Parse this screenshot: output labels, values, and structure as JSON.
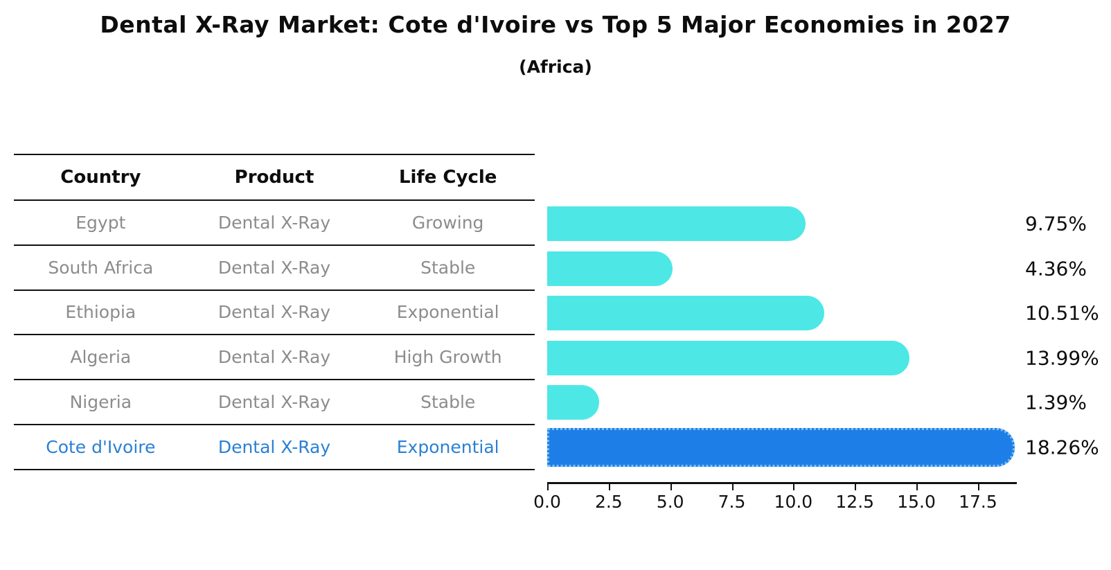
{
  "title": "Dental X-Ray Market: Cote d'Ivoire vs Top 5 Major Economies in 2027",
  "subtitle": "(Africa)",
  "colors": {
    "bar": "#4de8e6",
    "highlight_bar": "#1e7ee8",
    "highlight_bar_edge": "#7cc0f4",
    "highlight_text": "#2a80d4",
    "row_text": "#8c8c8c",
    "header_text": "#0d0d0d"
  },
  "table": {
    "headers": [
      "Country",
      "Product",
      "Life Cycle"
    ],
    "rows": [
      {
        "country": "Egypt",
        "product": "Dental X-Ray",
        "life_cycle": "Growing",
        "highlight": false
      },
      {
        "country": "South Africa",
        "product": "Dental X-Ray",
        "life_cycle": "Stable",
        "highlight": false
      },
      {
        "country": "Ethiopia",
        "product": "Dental X-Ray",
        "life_cycle": "Exponential",
        "highlight": false
      },
      {
        "country": "Algeria",
        "product": "Dental X-Ray",
        "life_cycle": "High Growth",
        "highlight": false
      },
      {
        "country": "Nigeria",
        "product": "Dental X-Ray",
        "life_cycle": "Stable",
        "highlight": false
      },
      {
        "country": "Cote d'Ivoire",
        "product": "Dental X-Ray",
        "life_cycle": "Exponential",
        "highlight": true
      }
    ]
  },
  "chart_data": {
    "type": "bar",
    "orientation": "horizontal",
    "title": "Dental X-Ray Market: Cote d'Ivoire vs Top 5 Major Economies in 2027",
    "subtitle": "(Africa)",
    "categories": [
      "Egypt",
      "South Africa",
      "Ethiopia",
      "Algeria",
      "Nigeria",
      "Cote d'Ivoire"
    ],
    "values": [
      9.75,
      4.36,
      10.51,
      13.99,
      1.39,
      18.26
    ],
    "labels": [
      "9.75%",
      "4.36%",
      "10.51%",
      "13.99%",
      "1.39%",
      "18.26%"
    ],
    "highlight_index": 5,
    "xlim": [
      0,
      19.05
    ],
    "xticks": [
      0.0,
      2.5,
      5.0,
      7.5,
      10.0,
      12.5,
      15.0,
      17.5
    ],
    "xtick_labels": [
      "0.0",
      "2.5",
      "5.0",
      "7.5",
      "10.0",
      "12.5",
      "15.0",
      "17.5"
    ],
    "grid": false,
    "legend": false
  }
}
